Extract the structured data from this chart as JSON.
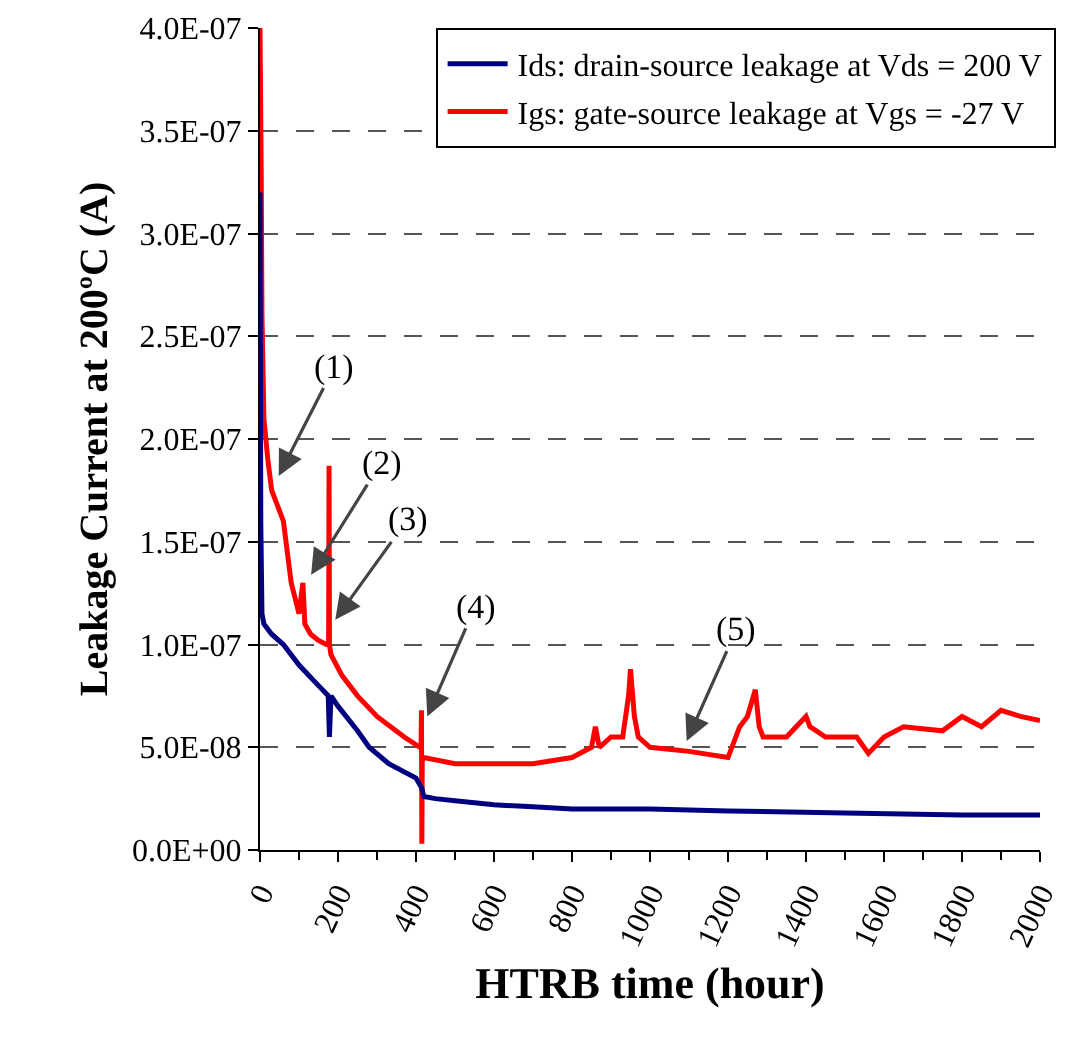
{
  "chart_data": {
    "type": "line",
    "xlabel": "HTRB time (hour)",
    "ylabel": "Leakage Current at 200ºC (A)",
    "xlim": [
      0,
      2000
    ],
    "xticks": [
      0,
      200,
      400,
      600,
      800,
      1000,
      1200,
      1400,
      1600,
      1800,
      2000
    ],
    "ylim": [
      0,
      4e-07
    ],
    "yticks": [
      {
        "value": 0,
        "label": "0.0E+00"
      },
      {
        "value": 5e-08,
        "label": "5.0E-08"
      },
      {
        "value": 1e-07,
        "label": "1.0E-07"
      },
      {
        "value": 1.5e-07,
        "label": "1.5E-07"
      },
      {
        "value": 2e-07,
        "label": "2.0E-07"
      },
      {
        "value": 2.5e-07,
        "label": "2.5E-07"
      },
      {
        "value": 3e-07,
        "label": "3.0E-07"
      },
      {
        "value": 3.5e-07,
        "label": "3.5E-07"
      },
      {
        "value": 4e-07,
        "label": "4.0E-07"
      }
    ],
    "grid": "y",
    "legend": "top right",
    "marker": "none",
    "line_style": "solid",
    "series": [
      {
        "name": "Ids: drain-source leakage at Vds = 200 V",
        "color": "#000080",
        "x": [
          0,
          2,
          5,
          10,
          30,
          60,
          100,
          150,
          175,
          178,
          182,
          200,
          250,
          280,
          330,
          400,
          415,
          420,
          450,
          500,
          600,
          700,
          800,
          1000,
          1200,
          1500,
          1800,
          2000
        ],
        "values": [
          3.2e-07,
          1.6e-07,
          1.15e-07,
          1.1e-07,
          1.05e-07,
          1e-07,
          9e-08,
          8e-08,
          7.5e-08,
          5.5e-08,
          7.5e-08,
          7e-08,
          5.8e-08,
          5e-08,
          4.2e-08,
          3.5e-08,
          3e-08,
          2.6e-08,
          2.5e-08,
          2.4e-08,
          2.2e-08,
          2.1e-08,
          2e-08,
          2e-08,
          1.9e-08,
          1.8e-08,
          1.7e-08,
          1.7e-08
        ]
      },
      {
        "name": "Igs: gate-source leakage at Vgs = -27 V",
        "color": "#ff0000",
        "x": [
          0,
          3,
          5,
          8,
          10,
          15,
          20,
          30,
          40,
          60,
          70,
          80,
          100,
          110,
          115,
          130,
          150,
          170,
          176,
          177,
          178,
          182,
          210,
          250,
          300,
          370,
          410,
          413,
          414,
          415,
          416,
          420,
          500,
          600,
          700,
          800,
          850,
          860,
          870,
          900,
          930,
          945,
          950,
          960,
          970,
          1000,
          1100,
          1200,
          1230,
          1250,
          1270,
          1280,
          1290,
          1350,
          1400,
          1410,
          1450,
          1530,
          1560,
          1600,
          1650,
          1750,
          1800,
          1850,
          1900,
          1950,
          2000
        ],
        "values": [
          4e-07,
          3.3e-07,
          2.6e-07,
          2.3e-07,
          2.1e-07,
          2e-07,
          1.9e-07,
          1.75e-07,
          1.7e-07,
          1.6e-07,
          1.45e-07,
          1.3e-07,
          1.15e-07,
          1.3e-07,
          1.1e-07,
          1.05e-07,
          1.02e-07,
          1e-07,
          1e-07,
          1.87e-07,
          1e-07,
          9.5e-08,
          8.5e-08,
          7.5e-08,
          6.5e-08,
          5.5e-08,
          5e-08,
          5e-08,
          6.8e-08,
          3e-09,
          4.5e-08,
          4.5e-08,
          4.2e-08,
          4.2e-08,
          4.2e-08,
          4.5e-08,
          5e-08,
          6e-08,
          5e-08,
          5.5e-08,
          5.5e-08,
          7.5e-08,
          8.8e-08,
          6.5e-08,
          5.5e-08,
          5e-08,
          4.8e-08,
          4.5e-08,
          6e-08,
          6.5e-08,
          7.8e-08,
          6e-08,
          5.5e-08,
          5.5e-08,
          6.5e-08,
          6e-08,
          5.5e-08,
          5.5e-08,
          4.7e-08,
          5.5e-08,
          6e-08,
          5.8e-08,
          6.5e-08,
          6e-08,
          6.8e-08,
          6.5e-08,
          6.3e-08
        ]
      }
    ],
    "annotations": [
      {
        "text": "(1)",
        "x": 48,
        "y": 1.82e-07
      },
      {
        "text": "(2)",
        "x": 131,
        "y": 1.34e-07
      },
      {
        "text": "(3)",
        "x": 193,
        "y": 1.12e-07
      },
      {
        "text": "(4)",
        "x": 429,
        "y": 6.5e-08
      },
      {
        "text": "(5)",
        "x": 1094,
        "y": 5.3e-08
      }
    ]
  }
}
